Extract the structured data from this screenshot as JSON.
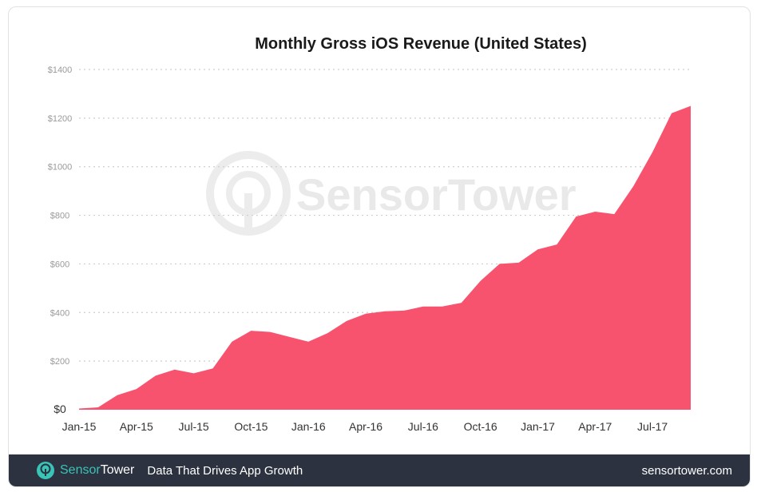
{
  "colors": {
    "area": "#f7526e",
    "footer_bg": "#2c323f",
    "brand_accent": "#39c4b8"
  },
  "watermark": {
    "text": "SensorTower",
    "icon": "sensortower-logo-icon"
  },
  "footer": {
    "icon": "sensortower-logo-icon",
    "brand_primary": "Sensor",
    "brand_secondary": "Tower",
    "tagline": "Data That Drives App Growth",
    "site": "sensortower.com"
  },
  "chart_data": {
    "type": "area",
    "title": "Monthly Gross iOS Revenue (United States)",
    "xlabel": "",
    "ylabel": "",
    "ylim": [
      0,
      1400
    ],
    "y_ticks": [
      0,
      200,
      400,
      600,
      800,
      1000,
      1200,
      1400
    ],
    "y_tick_labels": [
      "$0",
      "$200",
      "$400",
      "$600",
      "$800",
      "$1000",
      "$1200",
      "$1400"
    ],
    "x_tick_labels": [
      "Jan-15",
      "Apr-15",
      "Jul-15",
      "Oct-15",
      "Jan-16",
      "Apr-16",
      "Jul-16",
      "Oct-16",
      "Jan-17",
      "Apr-17",
      "Jul-17"
    ],
    "x_tick_indices": [
      0,
      3,
      6,
      9,
      12,
      15,
      18,
      21,
      24,
      27,
      30
    ],
    "grid": true,
    "legend": "none",
    "x": [
      "Jan-15",
      "Feb-15",
      "Mar-15",
      "Apr-15",
      "May-15",
      "Jun-15",
      "Jul-15",
      "Aug-15",
      "Sep-15",
      "Oct-15",
      "Nov-15",
      "Dec-15",
      "Jan-16",
      "Feb-16",
      "Mar-16",
      "Apr-16",
      "May-16",
      "Jun-16",
      "Jul-16",
      "Aug-16",
      "Sep-16",
      "Oct-16",
      "Nov-16",
      "Dec-16",
      "Jan-17",
      "Feb-17",
      "Mar-17",
      "Apr-17",
      "May-17",
      "Jun-17",
      "Jul-17",
      "Aug-17",
      "Sep-17"
    ],
    "values": [
      5,
      10,
      60,
      85,
      140,
      165,
      150,
      170,
      280,
      325,
      320,
      300,
      280,
      315,
      365,
      395,
      405,
      408,
      425,
      425,
      440,
      530,
      600,
      605,
      660,
      680,
      795,
      815,
      805,
      920,
      1060,
      1220,
      1250
    ]
  }
}
